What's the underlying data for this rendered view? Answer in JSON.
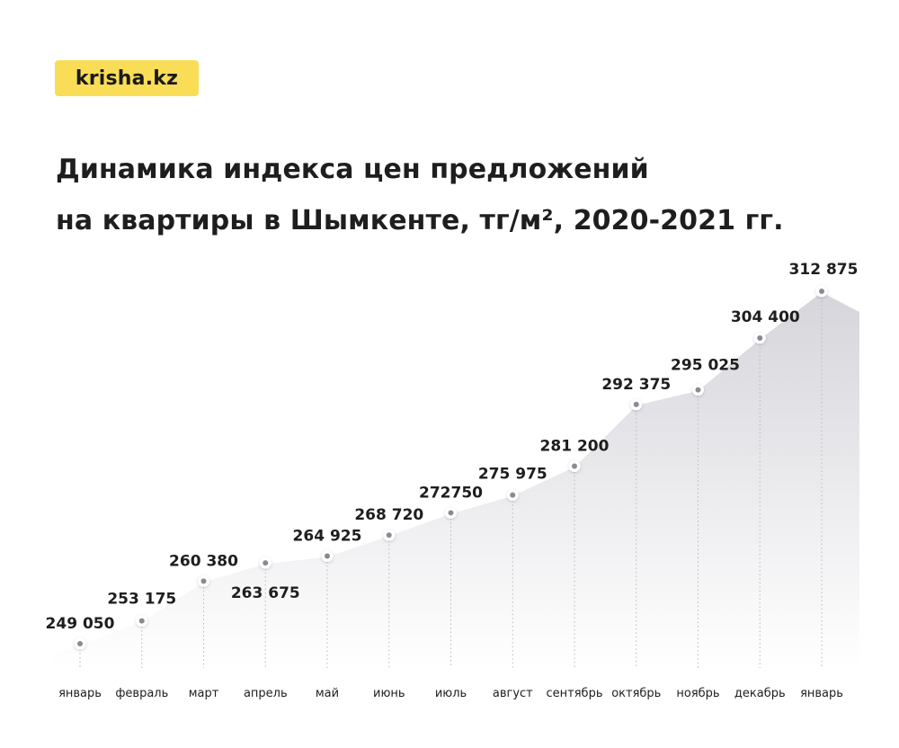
{
  "logo": {
    "text": "krisha.kz",
    "color": "#f9dd56"
  },
  "title_lines": [
    "Динамика индекса цен предложений",
    "на квартиры в Шымкенте, тг/м², 2020-2021 гг."
  ],
  "chart_data": {
    "type": "area",
    "title": "Динамика индекса цен предложений на квартиры в Шымкенте, тг/м², 2020-2021 гг.",
    "categories": [
      "январь",
      "февраль",
      "март",
      "апрель",
      "май",
      "июнь",
      "июль",
      "август",
      "сентябрь",
      "октябрь",
      "ноябрь",
      "декабрь",
      "январь"
    ],
    "series": [
      {
        "values": [
          249050,
          253175,
          260380,
          263675,
          264925,
          268720,
          272750,
          275975,
          281200,
          292375,
          295025,
          304400,
          312875
        ],
        "labels": [
          "249 050",
          "253 175",
          "260 380",
          "263 675",
          "264 925",
          "268 720",
          "272750",
          "275 975",
          "281 200",
          "292 375",
          "295 025",
          "304 400",
          "312 875"
        ]
      }
    ],
    "grid": false,
    "legend": "none",
    "colors": {
      "area_top": "#d9d9de",
      "area_bottom": "#ffffff",
      "line": "#ffffff",
      "marker": "#8a8a93",
      "text": "#1e1e1e"
    }
  }
}
